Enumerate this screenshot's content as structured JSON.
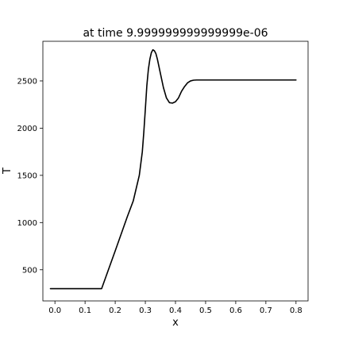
{
  "chart_data": {
    "type": "line",
    "title": "at time 9.999999999999999e-06",
    "xlabel": "x",
    "ylabel": "T",
    "xlim": [
      -0.04,
      0.84
    ],
    "ylim": [
      170,
      2920
    ],
    "xticks": [
      0.0,
      0.1,
      0.2,
      0.3,
      0.4,
      0.5,
      0.6,
      0.7,
      0.8
    ],
    "xtick_labels": [
      "0.0",
      "0.1",
      "0.2",
      "0.3",
      "0.4",
      "0.5",
      "0.6",
      "0.7",
      "0.8"
    ],
    "yticks": [
      500,
      1000,
      1500,
      2000,
      2500
    ],
    "ytick_labels": [
      "500",
      "1000",
      "1500",
      "2000",
      "2500"
    ],
    "grid": false,
    "series": [
      {
        "color": "#000000",
        "x": [
          -0.015,
          0.0,
          0.05,
          0.1,
          0.15,
          0.155,
          0.2,
          0.24,
          0.26,
          0.28,
          0.29,
          0.295,
          0.3,
          0.305,
          0.31,
          0.315,
          0.32,
          0.325,
          0.33,
          0.335,
          0.34,
          0.35,
          0.36,
          0.37,
          0.38,
          0.39,
          0.4,
          0.41,
          0.42,
          0.43,
          0.44,
          0.45,
          0.46,
          0.47,
          0.48,
          0.5,
          0.55,
          0.6,
          0.7,
          0.8
        ],
        "y": [
          300,
          300,
          300,
          300,
          300,
          300,
          700,
          1060,
          1230,
          1500,
          1750,
          1960,
          2200,
          2450,
          2620,
          2730,
          2800,
          2830,
          2820,
          2790,
          2730,
          2580,
          2430,
          2320,
          2270,
          2265,
          2280,
          2320,
          2390,
          2440,
          2480,
          2500,
          2508,
          2510,
          2510,
          2510,
          2510,
          2510,
          2510,
          2510
        ]
      }
    ]
  }
}
